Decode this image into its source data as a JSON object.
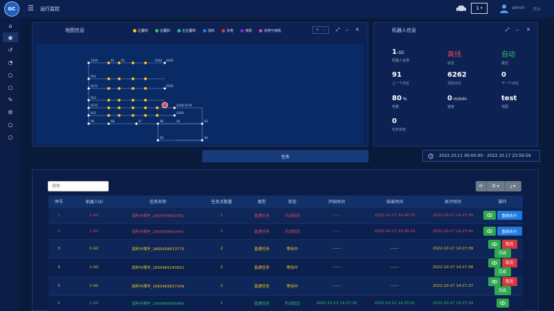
{
  "header": {
    "logo_text": "GC",
    "page_title": "运行监控",
    "robot_select": "1",
    "user_name": "admin",
    "logout": "退出"
  },
  "map_panel": {
    "title": "地图信息",
    "legend": [
      {
        "label": "左覆料",
        "color": "#f0c419"
      },
      {
        "label": "右覆料",
        "color": "#2fbf6b"
      },
      {
        "label": "左右覆料",
        "color": "#1fb5a8"
      },
      {
        "label": "加料",
        "color": "#1f7ae0"
      },
      {
        "label": "充电",
        "color": "#d9363e"
      },
      {
        "label": "待机",
        "color": "#7a2fd6"
      },
      {
        "label": "充电与待机",
        "color": "#d63fb0"
      }
    ],
    "zoom_in": "+",
    "zoom_out": "-"
  },
  "robot_panel": {
    "title": "机器人信息",
    "fields": [
      {
        "value": "1",
        "suffix": "-GC",
        "label": "机器人名称",
        "tone": "white"
      },
      {
        "value": "离线",
        "suffix": "",
        "label": "状态",
        "tone": "red"
      },
      {
        "value": "自动",
        "suffix": "",
        "label": "模式",
        "tone": "green"
      },
      {
        "value": "91",
        "suffix": "",
        "label": "上一个点位",
        "tone": "white"
      },
      {
        "value": "6262",
        "suffix": "",
        "label": "当前点位",
        "tone": "white"
      },
      {
        "value": "0",
        "suffix": "",
        "label": "下一个点位",
        "tone": "white"
      },
      {
        "value": "80",
        "suffix": " %",
        "label": "电量",
        "tone": "white"
      },
      {
        "value": "0",
        "suffix": " m/min",
        "label": "速度",
        "tone": "white"
      },
      {
        "value": "test",
        "suffix": "",
        "label": "地图",
        "tone": "white"
      },
      {
        "value": "0",
        "suffix": "",
        "label": "任务状态",
        "tone": "white"
      }
    ]
  },
  "task_tab": "任务",
  "date_range": "2022.10.11 00:00:00 - 2022.10.17 23:59:59",
  "search_placeholder": "搜索",
  "table": {
    "columns": [
      "序号",
      "机器人ID",
      "任务名称",
      "任务点数量",
      "类型",
      "状态",
      "开始时间",
      "结束时间",
      "执行时间",
      "操作"
    ],
    "rows": [
      {
        "no": "1",
        "robot": "1-GC",
        "name": "加料与喂羊_1665459907061",
        "count": "2",
        "type": "普通任务",
        "status": "手动取消",
        "start": "------",
        "end": "2022-10-17 14:28:25",
        "exec": "2022-10-17 14:27:39",
        "tone": "#e04b57",
        "actions": [
          "view",
          "rerun"
        ]
      },
      {
        "no": "2",
        "robot": "1-GC",
        "name": "加料与喂羊_1665458442441",
        "count": "2",
        "type": "普通任务",
        "status": "手动取消",
        "start": "------",
        "end": "2022-10-17 14:28:24",
        "exec": "2022-10-17 14:27:40",
        "tone": "#e04b57",
        "actions": [
          "view",
          "rerun"
        ]
      },
      {
        "no": "3",
        "robot": "1-GC",
        "name": "加料与喂羊_1665458913773",
        "count": "2",
        "type": "普通任务",
        "status": "等待中",
        "start": "------",
        "end": "------",
        "exec": "2022-10-17 14:27:39",
        "tone": "#f0c419",
        "actions": [
          "view",
          "cancel",
          "done"
        ]
      },
      {
        "no": "4",
        "robot": "1-GC",
        "name": "加料与喂羊_1665465245831",
        "count": "2",
        "type": "普通任务",
        "status": "等待中",
        "start": "------",
        "end": "------",
        "exec": "2022-10-17 14:27:38",
        "tone": "#f0c419",
        "actions": [
          "view",
          "cancel",
          "done"
        ]
      },
      {
        "no": "5",
        "robot": "1-GC",
        "name": "加料与喂羊_1665465657349",
        "count": "2",
        "type": "普通任务",
        "status": "等待中",
        "start": "------",
        "end": "------",
        "exec": "2022-10-17 14:27:37",
        "tone": "#f0c419",
        "actions": [
          "view",
          "cancel",
          "done"
        ]
      },
      {
        "no": "6",
        "robot": "1-GC",
        "name": "加料与喂羊_1665466045489",
        "count": "2",
        "type": "普通任务",
        "status": "手动取消",
        "start": "2022-10-11 13:27:26",
        "end": "2022-10-11 14:25:51",
        "exec": "2022-10-17 14:27:24",
        "tone": "#2fbf6b",
        "actions": [
          "view"
        ]
      }
    ],
    "action_labels": {
      "view": "",
      "rerun": "重新执行",
      "cancel": "取消",
      "done": "完成"
    }
  },
  "map_nodes": [
    {
      "id": "2319"
    },
    {
      "id": "91"
    },
    {
      "id": "62"
    },
    {
      "id": "6262"
    },
    {
      "id": "6264"
    },
    {
      "id": "914"
    },
    {
      "id": "6271"
    },
    {
      "id": "912"
    },
    {
      "id": "6272"
    },
    {
      "id": "910"
    },
    {
      "id": "99"
    },
    {
      "id": "98"
    },
    {
      "id": "97"
    },
    {
      "id": "96"
    },
    {
      "id": "92"
    },
    {
      "id": "93"
    },
    {
      "id": "94"
    },
    {
      "id": "95"
    },
    {
      "id": "6265"
    },
    {
      "id": "6268"
    },
    {
      "id": "6269"
    },
    {
      "id": "6270"
    }
  ]
}
